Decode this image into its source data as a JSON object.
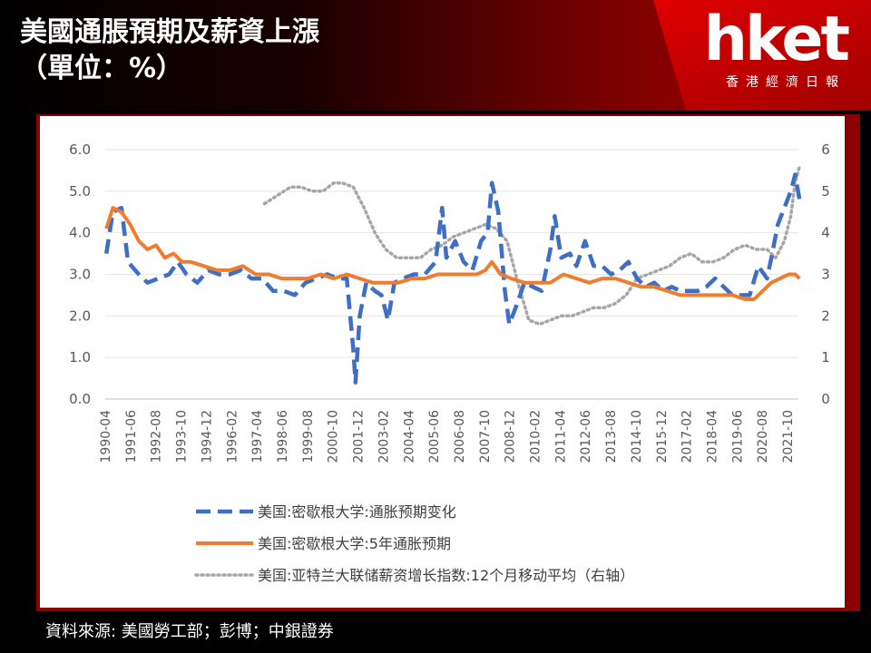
{
  "header": {
    "title_line1": "美國通脹預期及薪資上漲",
    "title_line2": "（單位：%）",
    "logo": "hket",
    "logo_sub": "香港經濟日報"
  },
  "source": "資料來源: 美國勞工部；彭博；中銀證券",
  "colors": {
    "series1": "#3f6fc4",
    "series2": "#ee7d31",
    "series3": "#a6a6a6"
  },
  "chart_data": {
    "type": "line",
    "left_yticks": [
      "6.0",
      "5.0",
      "4.0",
      "3.0",
      "2.0",
      "1.0",
      "0.0"
    ],
    "right_yticks": [
      "6",
      "5",
      "4",
      "3",
      "2",
      "1",
      "0"
    ],
    "ylim": [
      0,
      6
    ],
    "x_range": [
      "1990-04",
      "2022-04"
    ],
    "xticks": [
      "1990-04",
      "1991-06",
      "1992-08",
      "1993-10",
      "1994-12",
      "1996-02",
      "1997-04",
      "1998-06",
      "1999-08",
      "2000-10",
      "2001-12",
      "2003-02",
      "2004-04",
      "2005-06",
      "2006-08",
      "2007-10",
      "2008-12",
      "2010-02",
      "2011-04",
      "2012-06",
      "2013-08",
      "2014-10",
      "2015-12",
      "2017-02",
      "2018-04",
      "2019-06",
      "2020-08",
      "2021-10"
    ],
    "legend_position": "bottom",
    "series": [
      {
        "name": "美国:密歇根大学:通胀预期变化",
        "style": "dashed",
        "axis": "left",
        "points": [
          [
            1990.3,
            3.5
          ],
          [
            1990.6,
            4.5
          ],
          [
            1991.0,
            4.6
          ],
          [
            1991.3,
            3.3
          ],
          [
            1991.8,
            3.0
          ],
          [
            1992.2,
            2.8
          ],
          [
            1992.7,
            2.9
          ],
          [
            1993.2,
            3.0
          ],
          [
            1993.6,
            3.3
          ],
          [
            1994.0,
            3.0
          ],
          [
            1994.5,
            2.8
          ],
          [
            1995.0,
            3.1
          ],
          [
            1995.5,
            3.0
          ],
          [
            1996.0,
            3.0
          ],
          [
            1996.5,
            3.1
          ],
          [
            1997.0,
            2.9
          ],
          [
            1997.5,
            2.9
          ],
          [
            1998.0,
            2.6
          ],
          [
            1998.5,
            2.6
          ],
          [
            1999.0,
            2.5
          ],
          [
            1999.5,
            2.8
          ],
          [
            2000.0,
            2.9
          ],
          [
            2000.5,
            3.0
          ],
          [
            2001.0,
            2.9
          ],
          [
            2001.4,
            2.9
          ],
          [
            2001.7,
            1.2
          ],
          [
            2001.8,
            0.4
          ],
          [
            2002.0,
            2.0
          ],
          [
            2002.3,
            2.8
          ],
          [
            2002.7,
            2.6
          ],
          [
            2003.0,
            2.5
          ],
          [
            2003.3,
            1.9
          ],
          [
            2003.6,
            2.8
          ],
          [
            2004.0,
            2.9
          ],
          [
            2004.5,
            3.0
          ],
          [
            2005.0,
            3.0
          ],
          [
            2005.5,
            3.3
          ],
          [
            2005.8,
            4.6
          ],
          [
            2006.0,
            3.4
          ],
          [
            2006.4,
            3.8
          ],
          [
            2006.8,
            3.3
          ],
          [
            2007.2,
            3.1
          ],
          [
            2007.6,
            3.8
          ],
          [
            2007.9,
            4.0
          ],
          [
            2008.1,
            5.2
          ],
          [
            2008.4,
            4.5
          ],
          [
            2008.7,
            2.6
          ],
          [
            2008.9,
            1.8
          ],
          [
            2009.2,
            2.2
          ],
          [
            2009.6,
            2.8
          ],
          [
            2010.0,
            2.7
          ],
          [
            2010.4,
            2.6
          ],
          [
            2010.8,
            3.6
          ],
          [
            2011.0,
            4.4
          ],
          [
            2011.3,
            3.4
          ],
          [
            2011.7,
            3.5
          ],
          [
            2012.0,
            3.2
          ],
          [
            2012.4,
            3.8
          ],
          [
            2012.8,
            3.2
          ],
          [
            2013.2,
            3.2
          ],
          [
            2013.6,
            3.0
          ],
          [
            2014.0,
            3.1
          ],
          [
            2014.4,
            3.3
          ],
          [
            2014.8,
            2.9
          ],
          [
            2015.2,
            2.7
          ],
          [
            2015.6,
            2.8
          ],
          [
            2016.0,
            2.6
          ],
          [
            2016.4,
            2.7
          ],
          [
            2016.8,
            2.6
          ],
          [
            2017.2,
            2.6
          ],
          [
            2017.6,
            2.6
          ],
          [
            2018.0,
            2.7
          ],
          [
            2018.4,
            2.9
          ],
          [
            2018.8,
            2.7
          ],
          [
            2019.2,
            2.5
          ],
          [
            2019.6,
            2.5
          ],
          [
            2020.0,
            2.5
          ],
          [
            2020.4,
            3.2
          ],
          [
            2020.8,
            2.9
          ],
          [
            2021.0,
            3.4
          ],
          [
            2021.3,
            4.2
          ],
          [
            2021.6,
            4.6
          ],
          [
            2021.9,
            5.0
          ],
          [
            2022.1,
            5.4
          ],
          [
            2022.3,
            4.8
          ]
        ]
      },
      {
        "name": "美国:密歇根大学:5年通胀预期",
        "style": "solid",
        "axis": "left",
        "points": [
          [
            1990.3,
            4.1
          ],
          [
            1990.6,
            4.6
          ],
          [
            1991.0,
            4.5
          ],
          [
            1991.4,
            4.2
          ],
          [
            1991.8,
            3.8
          ],
          [
            1992.2,
            3.6
          ],
          [
            1992.6,
            3.7
          ],
          [
            1993.0,
            3.4
          ],
          [
            1993.4,
            3.5
          ],
          [
            1993.8,
            3.3
          ],
          [
            1994.2,
            3.3
          ],
          [
            1994.8,
            3.2
          ],
          [
            1995.4,
            3.1
          ],
          [
            1996.0,
            3.1
          ],
          [
            1996.6,
            3.2
          ],
          [
            1997.2,
            3.0
          ],
          [
            1997.8,
            3.0
          ],
          [
            1998.4,
            2.9
          ],
          [
            1999.0,
            2.9
          ],
          [
            1999.6,
            2.9
          ],
          [
            2000.2,
            3.0
          ],
          [
            2000.8,
            2.9
          ],
          [
            2001.4,
            3.0
          ],
          [
            2002.0,
            2.9
          ],
          [
            2002.6,
            2.8
          ],
          [
            2003.2,
            2.8
          ],
          [
            2003.8,
            2.8
          ],
          [
            2004.4,
            2.9
          ],
          [
            2005.0,
            2.9
          ],
          [
            2005.6,
            3.0
          ],
          [
            2006.2,
            3.0
          ],
          [
            2006.8,
            3.0
          ],
          [
            2007.4,
            3.0
          ],
          [
            2007.8,
            3.1
          ],
          [
            2008.1,
            3.3
          ],
          [
            2008.5,
            3.0
          ],
          [
            2009.0,
            2.9
          ],
          [
            2009.6,
            2.8
          ],
          [
            2010.2,
            2.8
          ],
          [
            2010.8,
            2.8
          ],
          [
            2011.4,
            3.0
          ],
          [
            2012.0,
            2.9
          ],
          [
            2012.6,
            2.8
          ],
          [
            2013.2,
            2.9
          ],
          [
            2013.8,
            2.9
          ],
          [
            2014.4,
            2.8
          ],
          [
            2015.0,
            2.7
          ],
          [
            2015.6,
            2.7
          ],
          [
            2016.2,
            2.6
          ],
          [
            2016.8,
            2.5
          ],
          [
            2017.4,
            2.5
          ],
          [
            2018.0,
            2.5
          ],
          [
            2018.6,
            2.5
          ],
          [
            2019.2,
            2.5
          ],
          [
            2019.8,
            2.4
          ],
          [
            2020.2,
            2.4
          ],
          [
            2020.6,
            2.6
          ],
          [
            2021.0,
            2.8
          ],
          [
            2021.4,
            2.9
          ],
          [
            2021.8,
            3.0
          ],
          [
            2022.1,
            3.0
          ],
          [
            2022.3,
            2.9
          ]
        ]
      },
      {
        "name": "美国:亚特兰大联储薪资增长指数:12个月移动平均（右轴）",
        "style": "dotted",
        "axis": "right",
        "points": [
          [
            1997.6,
            4.7
          ],
          [
            1998.2,
            4.9
          ],
          [
            1998.8,
            5.1
          ],
          [
            1999.3,
            5.1
          ],
          [
            1999.8,
            5.0
          ],
          [
            2000.3,
            5.0
          ],
          [
            2000.8,
            5.2
          ],
          [
            2001.2,
            5.2
          ],
          [
            2001.7,
            5.1
          ],
          [
            2002.2,
            4.6
          ],
          [
            2002.7,
            4.0
          ],
          [
            2003.2,
            3.6
          ],
          [
            2003.7,
            3.4
          ],
          [
            2004.2,
            3.4
          ],
          [
            2004.8,
            3.4
          ],
          [
            2005.3,
            3.6
          ],
          [
            2005.8,
            3.7
          ],
          [
            2006.3,
            3.9
          ],
          [
            2006.8,
            4.0
          ],
          [
            2007.3,
            4.1
          ],
          [
            2007.8,
            4.2
          ],
          [
            2008.3,
            4.1
          ],
          [
            2008.8,
            3.8
          ],
          [
            2009.3,
            2.8
          ],
          [
            2009.8,
            1.9
          ],
          [
            2010.3,
            1.8
          ],
          [
            2010.8,
            1.9
          ],
          [
            2011.3,
            2.0
          ],
          [
            2011.8,
            2.0
          ],
          [
            2012.3,
            2.1
          ],
          [
            2012.8,
            2.2
          ],
          [
            2013.3,
            2.2
          ],
          [
            2013.8,
            2.3
          ],
          [
            2014.3,
            2.5
          ],
          [
            2014.8,
            2.9
          ],
          [
            2015.3,
            3.0
          ],
          [
            2015.8,
            3.1
          ],
          [
            2016.3,
            3.2
          ],
          [
            2016.8,
            3.4
          ],
          [
            2017.3,
            3.5
          ],
          [
            2017.8,
            3.3
          ],
          [
            2018.3,
            3.3
          ],
          [
            2018.8,
            3.4
          ],
          [
            2019.3,
            3.6
          ],
          [
            2019.8,
            3.7
          ],
          [
            2020.3,
            3.6
          ],
          [
            2020.8,
            3.6
          ],
          [
            2021.2,
            3.4
          ],
          [
            2021.6,
            3.8
          ],
          [
            2021.9,
            4.4
          ],
          [
            2022.1,
            5.2
          ],
          [
            2022.3,
            5.6
          ]
        ]
      }
    ]
  }
}
